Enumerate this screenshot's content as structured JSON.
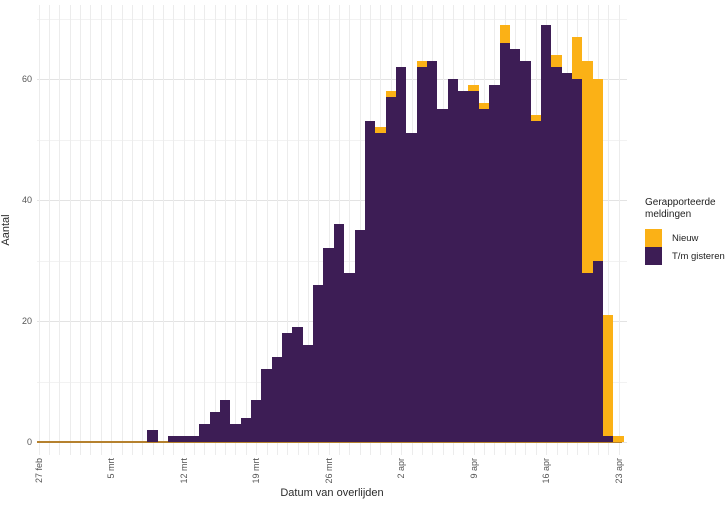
{
  "chart_data": {
    "type": "bar",
    "stacked": true,
    "title": "",
    "xlabel": "Datum van overlijden",
    "ylabel": "Aantal",
    "ylim": [
      0,
      72
    ],
    "yticks": [
      0,
      20,
      40,
      60
    ],
    "grid": "on",
    "legend_position": "right",
    "legend_title": "Gerapporteerde meldingen",
    "x_tick_labels": [
      "27 feb",
      "5 mrt",
      "12 mrt",
      "19 mrt",
      "26 mrt",
      "2 apr",
      "9 apr",
      "16 apr",
      "23 apr"
    ],
    "x_tick_day_index": [
      0,
      7,
      14,
      21,
      28,
      35,
      42,
      49,
      56
    ],
    "num_days": 57,
    "series": [
      {
        "name": "T/m gisteren",
        "color": "#3D1D55",
        "values": [
          0,
          0,
          0,
          0,
          0,
          0,
          0,
          0,
          0,
          0,
          0,
          2,
          0,
          1,
          1,
          1,
          3,
          5,
          7,
          3,
          4,
          7,
          12,
          14,
          18,
          19,
          16,
          26,
          32,
          36,
          28,
          35,
          53,
          51,
          57,
          62,
          51,
          62,
          63,
          55,
          60,
          58,
          58,
          55,
          59,
          66,
          65,
          63,
          53,
          69,
          62,
          61,
          60,
          28,
          30,
          1,
          0
        ]
      },
      {
        "name": "Nieuw",
        "color": "#FBB116",
        "values": [
          0,
          0,
          0,
          0,
          0,
          0,
          0,
          0,
          0,
          0,
          0,
          0,
          0,
          0,
          0,
          0,
          0,
          0,
          0,
          0,
          0,
          0,
          0,
          0,
          0,
          0,
          0,
          0,
          0,
          0,
          0,
          0,
          0,
          1,
          1,
          0,
          0,
          1,
          0,
          0,
          0,
          0,
          1,
          1,
          0,
          3,
          0,
          0,
          1,
          0,
          2,
          0,
          7,
          35,
          30,
          20,
          1
        ]
      }
    ],
    "baseline_color": "#B5812E",
    "gridline_major_color": "#e3e3e3",
    "gridline_minor_color": "#f2f2f2",
    "gridline_vertical_color": "#ececec"
  },
  "legend": {
    "title": "Gerapporteerde meldingen",
    "items": [
      {
        "label": "Nieuw",
        "color": "#FBB116"
      },
      {
        "label": "T/m gisteren",
        "color": "#3D1D55"
      }
    ]
  },
  "axes": {
    "x_title": "Datum van overlijden",
    "y_title": "Aantal"
  }
}
